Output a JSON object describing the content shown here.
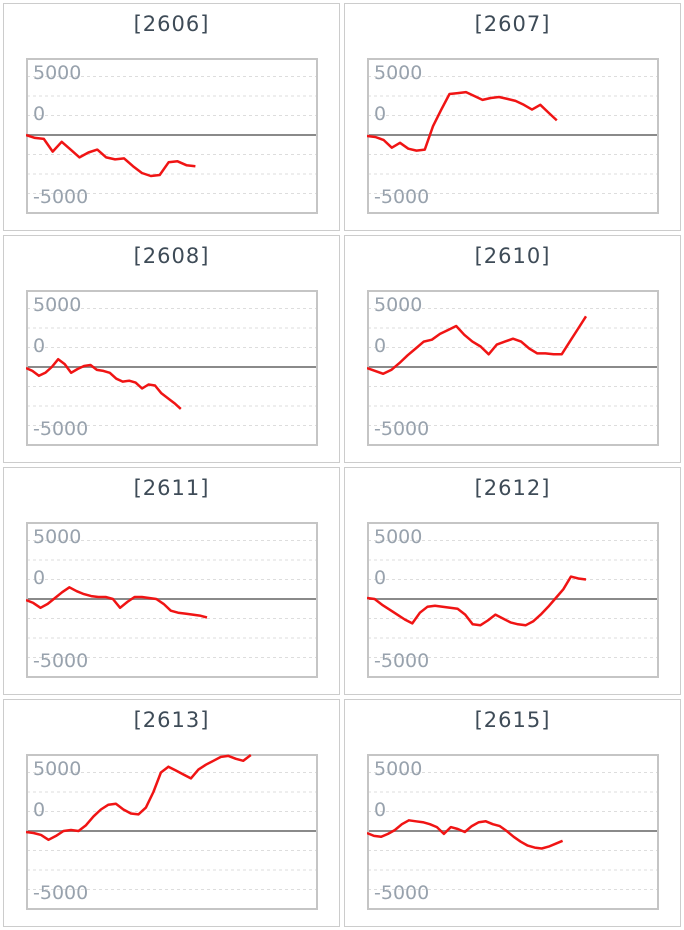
{
  "page": {
    "background": "#ffffff"
  },
  "styles": {
    "accent_red": "#f01414",
    "title_color": "#3e4b57",
    "axis_label_color": "#98a2ad",
    "grid_color": "#dddddd",
    "zero_line_color": "#8a8a8a",
    "plot_border_color": "#c5c5c5",
    "cell_border_color": "#cccccc"
  },
  "chart_data": [
    {
      "type": "line",
      "title": "[2606]",
      "y_tick_labels": [
        "5000",
        "0",
        "-5000"
      ],
      "ylim": [
        -8000,
        8000
      ],
      "grid_step": 2000,
      "grid_on": true,
      "legend": "none",
      "series_color": "#f01414",
      "x_extent": 0.58,
      "values": [
        0,
        -300,
        -400,
        -1700,
        -700,
        -1500,
        -2300,
        -1800,
        -1500,
        -2300,
        -2500,
        -2400,
        -3200,
        -3900,
        -4200,
        -4100,
        -2800,
        -2700,
        -3100,
        -3200
      ]
    },
    {
      "type": "line",
      "title": "[2607]",
      "y_tick_labels": [
        "5000",
        "0",
        "-5000"
      ],
      "ylim": [
        -8000,
        8000
      ],
      "grid_step": 2000,
      "grid_on": true,
      "legend": "none",
      "series_color": "#f01414",
      "x_extent": 0.65,
      "values": [
        -100,
        -200,
        -500,
        -1300,
        -800,
        -1400,
        -1600,
        -1500,
        900,
        2600,
        4200,
        4300,
        4400,
        4000,
        3600,
        3800,
        3900,
        3700,
        3500,
        3100,
        2600,
        3100,
        2300,
        1500
      ]
    },
    {
      "type": "line",
      "title": "[2608]",
      "y_tick_labels": [
        "5000",
        "0",
        "-5000"
      ],
      "ylim": [
        -8000,
        8000
      ],
      "grid_step": 2000,
      "grid_on": true,
      "legend": "none",
      "series_color": "#f01414",
      "x_extent": 0.53,
      "values": [
        -100,
        -400,
        -900,
        -600,
        0,
        800,
        300,
        -600,
        -200,
        100,
        200,
        -300,
        -400,
        -600,
        -1200,
        -1500,
        -1400,
        -1600,
        -2200,
        -1800,
        -1900,
        -2700,
        -3200,
        -3700,
        -4300
      ]
    },
    {
      "type": "line",
      "title": "[2610]",
      "y_tick_labels": [
        "5000",
        "0",
        "-5000"
      ],
      "ylim": [
        -8000,
        8000
      ],
      "grid_step": 2000,
      "grid_on": true,
      "legend": "none",
      "series_color": "#f01414",
      "x_extent": 0.75,
      "values": [
        -100,
        -400,
        -700,
        -300,
        400,
        1200,
        1900,
        2600,
        2800,
        3400,
        3800,
        4200,
        3300,
        2600,
        2100,
        1300,
        2300,
        2600,
        2900,
        2600,
        1900,
        1400,
        1400,
        1300,
        1300,
        2600,
        3900,
        5200
      ]
    },
    {
      "type": "line",
      "title": "[2611]",
      "y_tick_labels": [
        "5000",
        "0",
        "-5000"
      ],
      "ylim": [
        -8000,
        8000
      ],
      "grid_step": 2000,
      "grid_on": true,
      "legend": "none",
      "series_color": "#f01414",
      "x_extent": 0.62,
      "values": [
        -100,
        -400,
        -900,
        -500,
        100,
        700,
        1200,
        800,
        500,
        300,
        200,
        200,
        0,
        -900,
        -300,
        200,
        200,
        100,
        0,
        -500,
        -1200,
        -1400,
        -1500,
        -1600,
        -1700,
        -1900
      ]
    },
    {
      "type": "line",
      "title": "[2612]",
      "y_tick_labels": [
        "5000",
        "0",
        "-5000"
      ],
      "ylim": [
        -8000,
        8000
      ],
      "grid_step": 2000,
      "grid_on": true,
      "legend": "none",
      "series_color": "#f01414",
      "x_extent": 0.75,
      "values": [
        100,
        0,
        -600,
        -1100,
        -1600,
        -2100,
        -2500,
        -1400,
        -800,
        -700,
        -800,
        -900,
        -1000,
        -1600,
        -2600,
        -2700,
        -2200,
        -1600,
        -2000,
        -2400,
        -2600,
        -2700,
        -2300,
        -1600,
        -800,
        100,
        1000,
        2300,
        2100,
        2000
      ]
    },
    {
      "type": "line",
      "title": "[2613]",
      "y_tick_labels": [
        "5000",
        "0",
        "-5000"
      ],
      "ylim": [
        -8000,
        8000
      ],
      "grid_step": 2000,
      "grid_on": true,
      "legend": "none",
      "series_color": "#f01414",
      "x_extent": 0.77,
      "values": [
        -100,
        -200,
        -400,
        -900,
        -500,
        0,
        100,
        0,
        600,
        1500,
        2200,
        2700,
        2800,
        2200,
        1800,
        1700,
        2400,
        4000,
        6000,
        6600,
        6200,
        5800,
        5400,
        6300,
        6800,
        7200,
        7600,
        7700,
        7400,
        7200,
        8000
      ]
    },
    {
      "type": "line",
      "title": "[2615]",
      "y_tick_labels": [
        "5000",
        "0",
        "-5000"
      ],
      "ylim": [
        -8000,
        8000
      ],
      "grid_step": 2000,
      "grid_on": true,
      "legend": "none",
      "series_color": "#f01414",
      "x_extent": 0.67,
      "values": [
        -200,
        -500,
        -600,
        -300,
        100,
        700,
        1100,
        1000,
        900,
        700,
        400,
        -300,
        400,
        200,
        -100,
        500,
        900,
        1000,
        700,
        500,
        0,
        -600,
        -1100,
        -1500,
        -1700,
        -1800,
        -1600,
        -1300,
        -1000
      ]
    }
  ]
}
